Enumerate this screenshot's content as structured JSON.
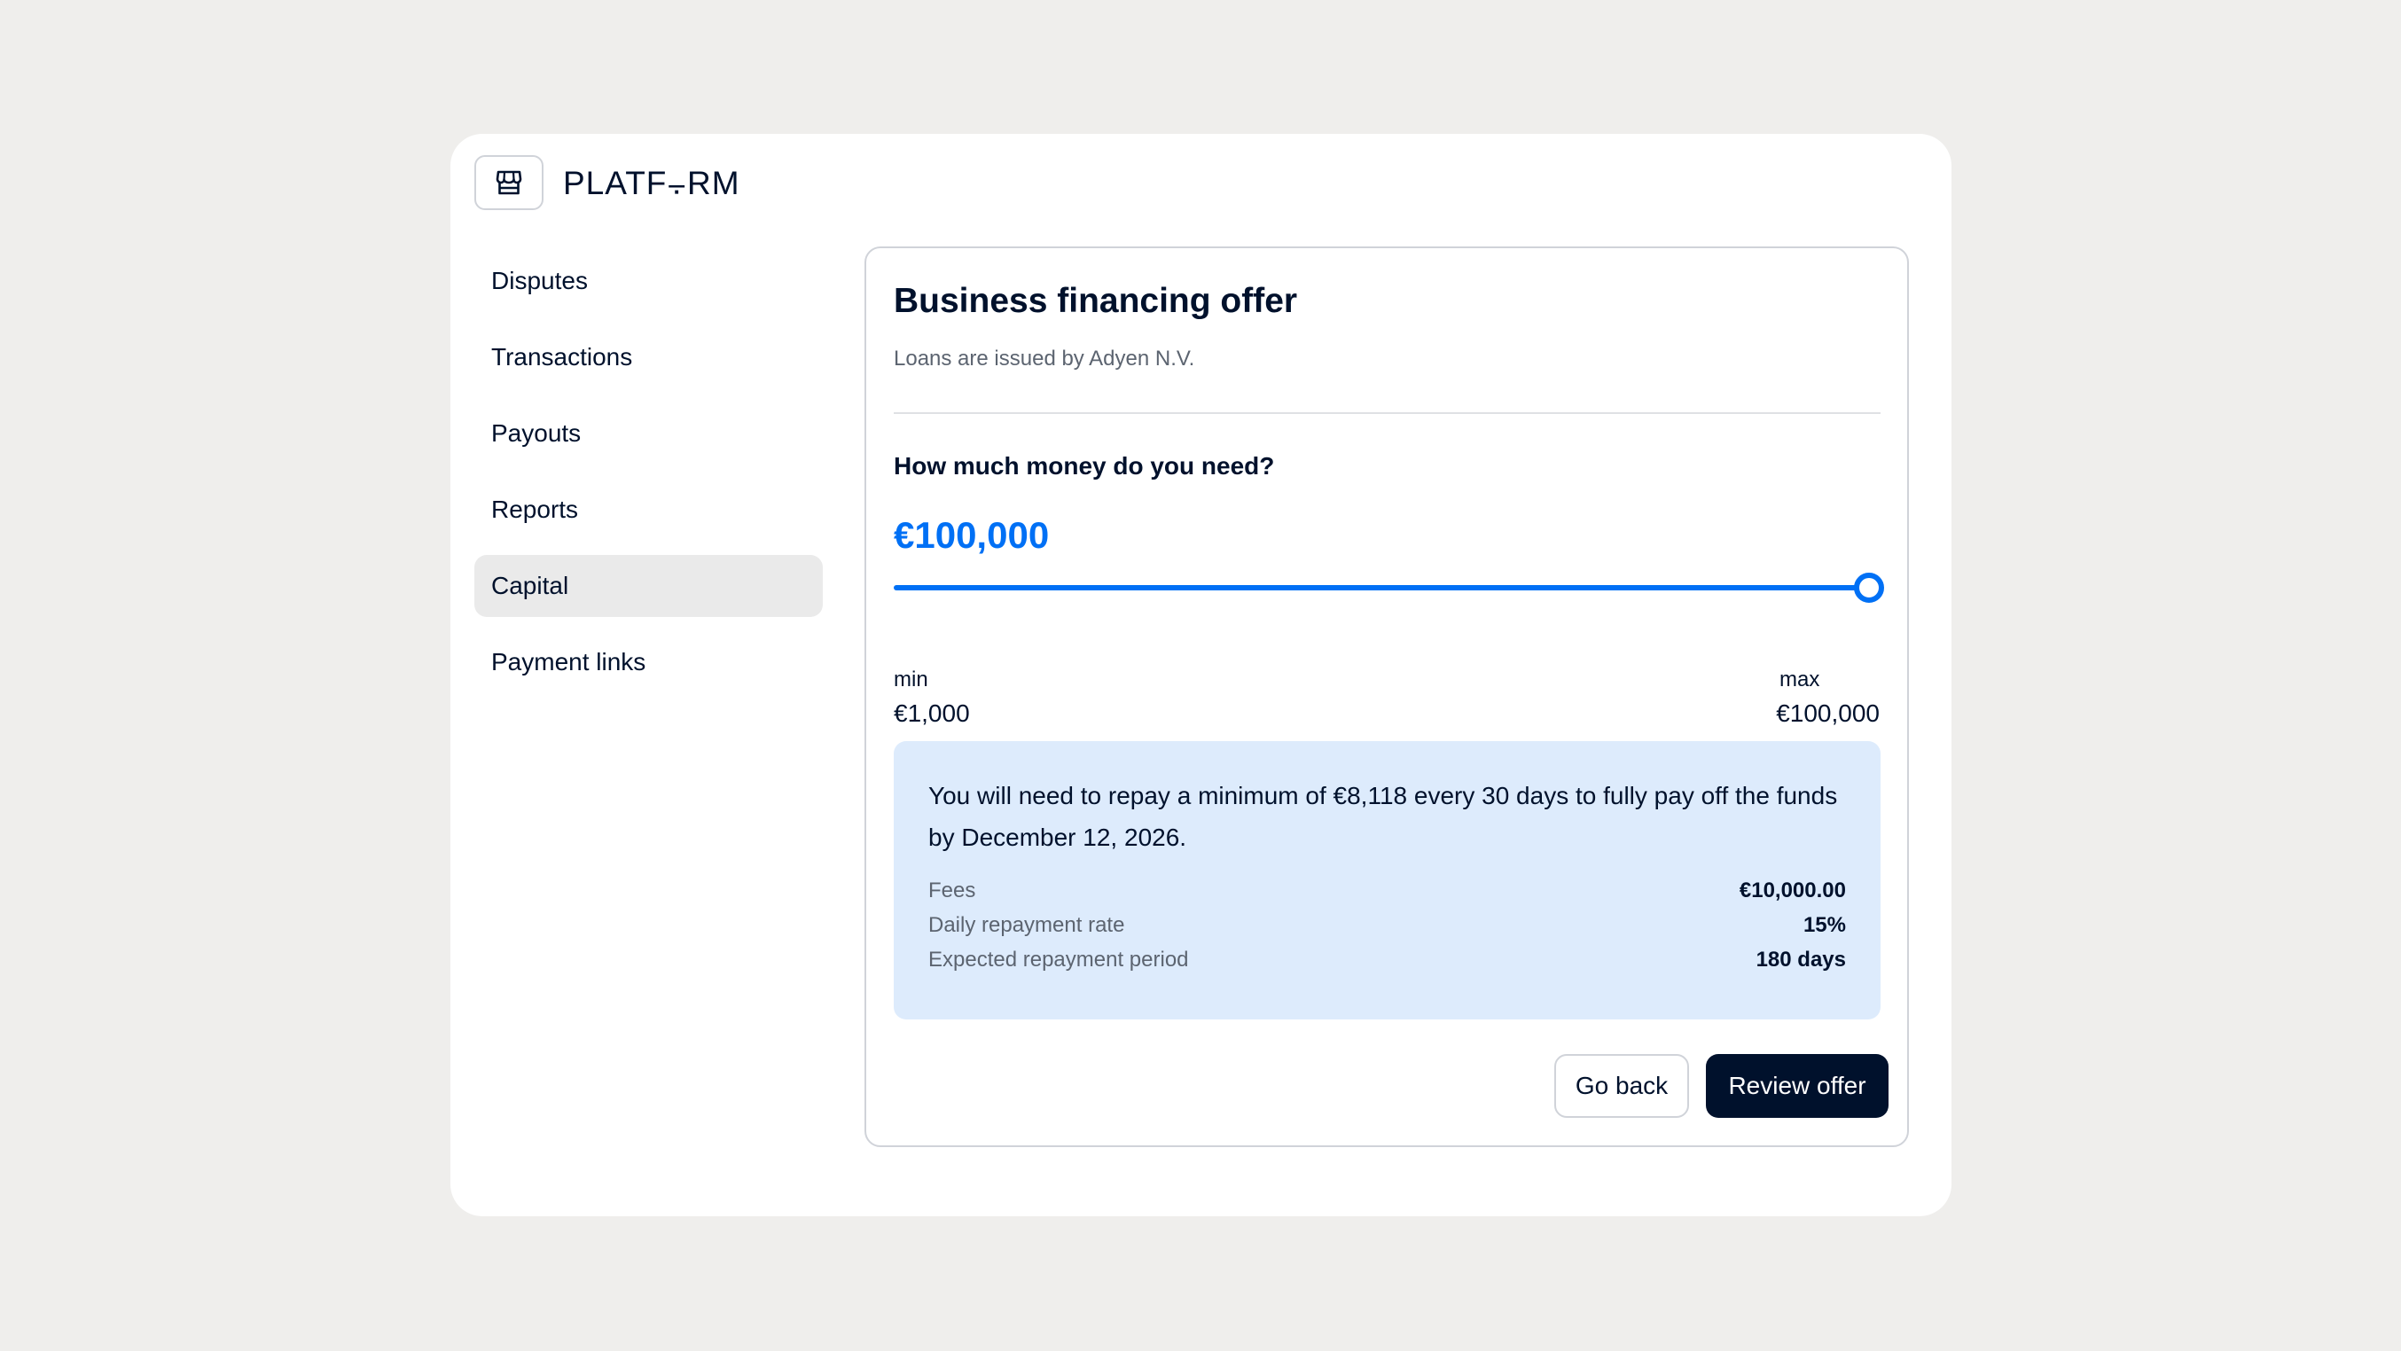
{
  "brand": {
    "name": "PLATF⨪RM",
    "logo_icon": "storefront-icon"
  },
  "sidebar": {
    "items": [
      {
        "label": "Disputes",
        "active": false
      },
      {
        "label": "Transactions",
        "active": false
      },
      {
        "label": "Payouts",
        "active": false
      },
      {
        "label": "Reports",
        "active": false
      },
      {
        "label": "Capital",
        "active": true
      },
      {
        "label": "Payment links",
        "active": false
      }
    ]
  },
  "offer": {
    "title": "Business financing offer",
    "subtitle": "Loans are issued by Adyen N.V.",
    "question": "How much money do you need?",
    "amount": "€100,000",
    "slider": {
      "value_fraction": 1.0,
      "min_label": "min",
      "min_value": "€1,000",
      "max_label": "max",
      "max_value": "€100,000"
    },
    "info": {
      "text": "You will need to repay a minimum of €8,118 every 30 days to fully pay off the funds by December 12, 2026.",
      "details": [
        {
          "label": "Fees",
          "value": "€10,000.00"
        },
        {
          "label": "Daily repayment rate",
          "value": "15%"
        },
        {
          "label": "Expected repayment period",
          "value": "180 days"
        }
      ]
    },
    "actions": {
      "back_label": "Go back",
      "review_label": "Review offer"
    }
  },
  "colors": {
    "accent": "#0070f5",
    "primary": "#00112c",
    "info_bg": "#ddebfc",
    "background": "#efeeec"
  }
}
